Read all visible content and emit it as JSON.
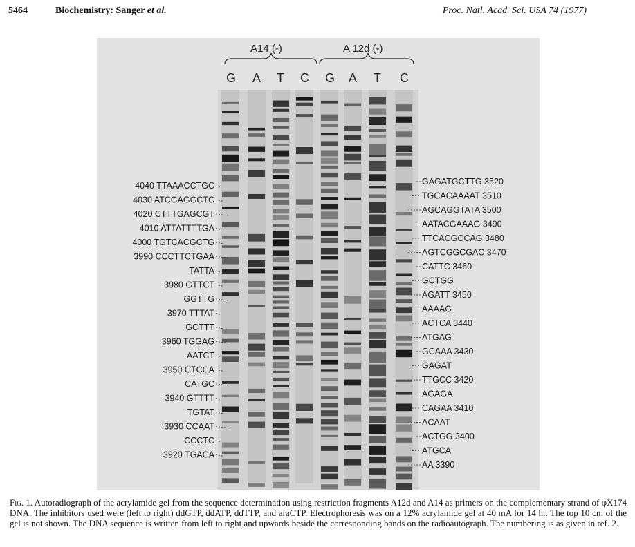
{
  "header": {
    "page_number": "5464",
    "section": "Biochemistry:",
    "authors": "Sanger",
    "et_al": "et al.",
    "journal": "Proc. Natl. Acad. Sci. USA 74 (1977)"
  },
  "figure": {
    "group_labels": [
      "A14 (-)",
      "A 12d (-)"
    ],
    "lane_labels": [
      "G",
      "A",
      "T",
      "C",
      "G",
      "A",
      "T",
      "C"
    ],
    "left_sequence": [
      {
        "num": "4040",
        "seq": "TTAAACCTGC"
      },
      {
        "num": "4030",
        "seq": "ATCGAGGCTC"
      },
      {
        "num": "4020",
        "seq": "CTTTGAGCGT"
      },
      {
        "num": "4010",
        "seq": "ATTATTTTGA"
      },
      {
        "num": "4000",
        "seq": "TGTCACGCTG"
      },
      {
        "num": "3990",
        "seq": "CCCTTCTGAA"
      },
      {
        "num": "",
        "seq": "TATTA"
      },
      {
        "num": "3980",
        "seq": "GTTCT"
      },
      {
        "num": "",
        "seq": "GGTTG"
      },
      {
        "num": "3970",
        "seq": "TTTAT"
      },
      {
        "num": "",
        "seq": "GCTTT"
      },
      {
        "num": "3960",
        "seq": "TGGAG"
      },
      {
        "num": "",
        "seq": "AATCT"
      },
      {
        "num": "3950",
        "seq": "CTCCA"
      },
      {
        "num": "",
        "seq": "CATGC"
      },
      {
        "num": "3940",
        "seq": "GTTTT"
      },
      {
        "num": "",
        "seq": "TGTAT"
      },
      {
        "num": "3930",
        "seq": "CCAAT"
      },
      {
        "num": "",
        "seq": "CCCTC"
      },
      {
        "num": "3920",
        "seq": "TGACA"
      }
    ],
    "right_sequence": [
      {
        "seq": "GAGATGCTTG",
        "num": "3520"
      },
      {
        "seq": "TGCACAAAAT",
        "num": "3510"
      },
      {
        "seq": "AGCAGGTATA",
        "num": "3500"
      },
      {
        "seq": "AATACGAAAG",
        "num": "3490"
      },
      {
        "seq": "TTCACGCCAG",
        "num": "3480"
      },
      {
        "seq": "AGTCGGCGAC",
        "num": "3470"
      },
      {
        "seq": "CATTC",
        "num": "3460"
      },
      {
        "seq": "GCTGG",
        "num": ""
      },
      {
        "seq": "AGATT",
        "num": "3450"
      },
      {
        "seq": "AAAAG",
        "num": ""
      },
      {
        "seq": "ACTCA",
        "num": "3440"
      },
      {
        "seq": "ATGAG",
        "num": ""
      },
      {
        "seq": "GCAAA",
        "num": "3430"
      },
      {
        "seq": "GAGAT",
        "num": ""
      },
      {
        "seq": "TTGCC",
        "num": "3420"
      },
      {
        "seq": "AGAGA",
        "num": ""
      },
      {
        "seq": "CAGAA",
        "num": "3410"
      },
      {
        "seq": "ACAAT",
        "num": ""
      },
      {
        "seq": "ACTGG",
        "num": "3400"
      },
      {
        "seq": "ATGCA",
        "num": ""
      },
      {
        "seq": "AA",
        "num": "3390"
      }
    ],
    "colors": {
      "gel_bg": "#d9d9d9",
      "band": "#151515"
    }
  },
  "caption": {
    "fig_label": "Fig. 1.",
    "text": "Autoradiograph of the acrylamide gel from the sequence determination using restriction fragments A12d and A14 as primers on the complementary strand of φX174 DNA. The inhibitors used were (left to right) ddGTP, ddATP, ddTTP, and araCTP. Electrophoresis was on a 12% acrylamide gel at 40 mA for 14 hr. The top 10 cm of the gel is not shown. The DNA sequence is written from left to right and upwards beside the corresponding bands on the radioautograph. The numbering is as given in ref. 2."
  }
}
